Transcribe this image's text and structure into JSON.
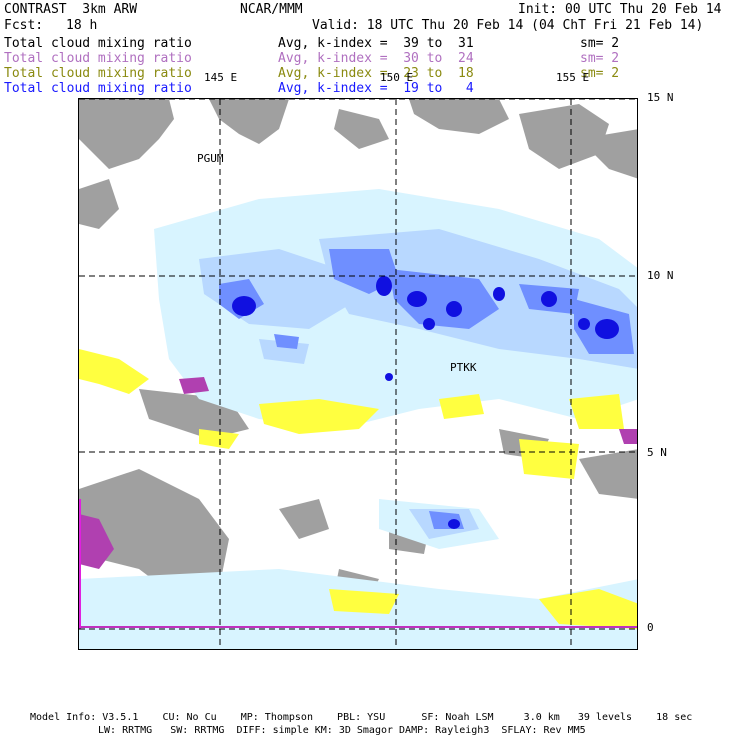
{
  "header": {
    "model": "CONTRAST  3km ARW",
    "center": "NCAR/MMM",
    "init": "Init: 00 UTC Thu 20 Feb 14",
    "fcst_label": "Fcst:",
    "fcst_value": "18 h",
    "valid": "Valid: 18 UTC Thu 20 Feb 14 (04 ChT Fri 21 Feb 14)"
  },
  "legend": [
    {
      "field": "Total cloud mixing ratio",
      "stat": "Avg, k-index =  39 to  31",
      "sm": "sm= 2",
      "color": "#000000"
    },
    {
      "field": "Total cloud mixing ratio",
      "stat": "Avg, k-index =  30 to  24",
      "sm": "sm= 2",
      "color": "#b070c0"
    },
    {
      "field": "Total cloud mixing ratio",
      "stat": "Avg, k-index =  23 to  18",
      "sm": "sm= 2",
      "color": "#8a8a10"
    },
    {
      "field": "Total cloud mixing ratio",
      "stat": "Avg, k-index =  19 to   4",
      "sm": "",
      "color": "#1a1aff"
    }
  ],
  "map": {
    "lon_labels": [
      "145 E",
      "150 E",
      "155 E"
    ],
    "lat_labels": [
      "15 N",
      "10 N",
      "5 N",
      "0"
    ],
    "stations": [
      "PGUM",
      "PTKK"
    ],
    "layer_colors": {
      "high_cloud": "#a0a0a0",
      "mid_cloud": "#b040b0",
      "low_cloud": "#ffff40",
      "shallow_cloud": "#d8f4ff",
      "light_blue": "#b8d8ff",
      "medium_blue": "#6f8fff",
      "deep_blue": "#1010e0"
    }
  },
  "footer": {
    "line1": "Model Info: V3.5.1    CU: No Cu    MP: Thompson    PBL: YSU      SF: Noah LSM     3.0 km   39 levels    18 sec",
    "line2": "LW: RRTMG   SW: RRTMG  DIFF: simple KM: 3D Smagor DAMP: Rayleigh3  SFLAY: Rev MM5"
  }
}
